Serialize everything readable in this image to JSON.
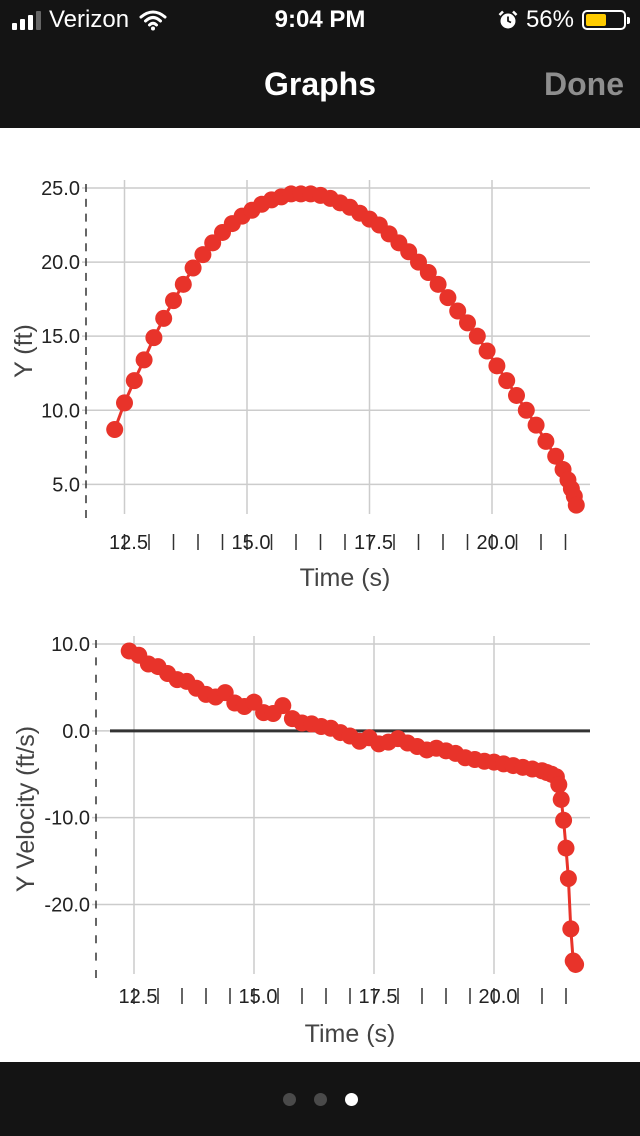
{
  "status_bar": {
    "carrier": "Verizon",
    "time": "9:04 PM",
    "battery": "56%",
    "battery_level": 0.56,
    "icons": [
      "signal-icon",
      "wifi-icon",
      "alarm-icon",
      "battery-icon"
    ]
  },
  "nav": {
    "title": "Graphs",
    "done_label": "Done"
  },
  "page_indicator": {
    "count": 3,
    "active": 2
  },
  "colors": {
    "series": "#e8332a",
    "grid": "#cccccc",
    "text": "#222222",
    "bar": "#141414"
  },
  "chart_data": [
    {
      "type": "line",
      "title": "",
      "xlabel": "Time (s)",
      "ylabel": "Y (ft)",
      "xlim": [
        12.0,
        22.0
      ],
      "ylim": [
        3.0,
        25.0
      ],
      "xticks": [
        12.5,
        15.0,
        17.5,
        20.0
      ],
      "xtick_labels": [
        "12.5",
        "15.0",
        "17.5",
        "20.0"
      ],
      "yticks": [
        5.0,
        10.0,
        15.0,
        20.0,
        25.0
      ],
      "ytick_labels": [
        "5.0",
        "10.0",
        "15.0",
        "20.0",
        "25.0"
      ],
      "grid": true,
      "legend": "none",
      "series": [
        {
          "x": [
            12.3,
            12.5,
            12.7,
            12.9,
            13.1,
            13.3,
            13.5,
            13.7,
            13.9,
            14.1,
            14.3,
            14.5,
            14.7,
            14.9,
            15.1,
            15.3,
            15.5,
            15.7,
            15.9,
            16.1,
            16.3,
            16.5,
            16.7,
            16.9,
            17.1,
            17.3,
            17.5,
            17.7,
            17.9,
            18.1,
            18.3,
            18.5,
            18.7,
            18.9,
            19.1,
            19.3,
            19.5,
            19.7,
            19.9,
            20.1,
            20.3,
            20.5,
            20.7,
            20.9,
            21.1,
            21.3,
            21.45,
            21.55,
            21.62,
            21.68,
            21.72
          ],
          "y": [
            8.7,
            10.5,
            12.0,
            13.4,
            14.9,
            16.2,
            17.4,
            18.5,
            19.6,
            20.5,
            21.3,
            22.0,
            22.6,
            23.1,
            23.5,
            23.9,
            24.2,
            24.4,
            24.6,
            24.6,
            24.6,
            24.5,
            24.3,
            24.0,
            23.7,
            23.3,
            22.9,
            22.5,
            21.9,
            21.3,
            20.7,
            20.0,
            19.3,
            18.5,
            17.6,
            16.7,
            15.9,
            15.0,
            14.0,
            13.0,
            12.0,
            11.0,
            10.0,
            9.0,
            7.9,
            6.9,
            6.0,
            5.3,
            4.7,
            4.2,
            3.6
          ]
        }
      ]
    },
    {
      "type": "line",
      "title": "",
      "xlabel": "Time (s)",
      "ylabel": "Y Velocity (ft/s)",
      "xlim": [
        12.0,
        22.0
      ],
      "ylim": [
        -28.0,
        10.0
      ],
      "xticks": [
        12.5,
        15.0,
        17.5,
        20.0
      ],
      "xtick_labels": [
        "12.5",
        "15.0",
        "17.5",
        "20.0"
      ],
      "yticks": [
        10.0,
        0.0,
        -10.0,
        -20.0
      ],
      "ytick_labels": [
        "10.0",
        "0.0",
        "-10.0",
        "-20.0"
      ],
      "zero_line": true,
      "grid": true,
      "legend": "none",
      "series": [
        {
          "x": [
            12.4,
            12.6,
            12.8,
            13.0,
            13.2,
            13.4,
            13.6,
            13.8,
            14.0,
            14.2,
            14.4,
            14.6,
            14.8,
            15.0,
            15.2,
            15.4,
            15.6,
            15.8,
            16.0,
            16.2,
            16.4,
            16.6,
            16.8,
            17.0,
            17.2,
            17.4,
            17.6,
            17.8,
            18.0,
            18.2,
            18.4,
            18.6,
            18.8,
            19.0,
            19.2,
            19.4,
            19.6,
            19.8,
            20.0,
            20.2,
            20.4,
            20.6,
            20.8,
            21.0,
            21.1,
            21.2,
            21.3,
            21.35,
            21.4,
            21.45,
            21.5,
            21.55,
            21.6,
            21.65,
            21.7
          ],
          "y": [
            9.2,
            8.7,
            7.7,
            7.4,
            6.6,
            5.9,
            5.7,
            4.9,
            4.2,
            3.9,
            4.4,
            3.2,
            2.8,
            3.3,
            2.1,
            2.0,
            2.9,
            1.4,
            0.9,
            0.8,
            0.5,
            0.3,
            -0.2,
            -0.6,
            -1.2,
            -0.8,
            -1.5,
            -1.3,
            -0.9,
            -1.4,
            -1.8,
            -2.2,
            -2.0,
            -2.3,
            -2.6,
            -3.1,
            -3.3,
            -3.5,
            -3.6,
            -3.8,
            -4.0,
            -4.2,
            -4.4,
            -4.6,
            -4.8,
            -5.0,
            -5.3,
            -6.2,
            -7.9,
            -10.3,
            -13.5,
            -17.0,
            -22.8,
            -26.5,
            -26.9
          ]
        }
      ]
    }
  ]
}
